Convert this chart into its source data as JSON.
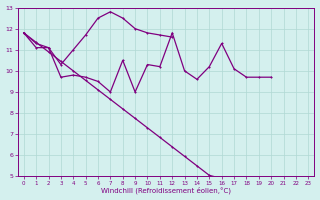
{
  "xlabel": "Windchill (Refroidissement éolien,°C)",
  "xlim": [
    -0.5,
    23.5
  ],
  "ylim": [
    5,
    13
  ],
  "xticks": [
    0,
    1,
    2,
    3,
    4,
    5,
    6,
    7,
    8,
    9,
    10,
    11,
    12,
    13,
    14,
    15,
    16,
    17,
    18,
    19,
    20,
    21,
    22,
    23
  ],
  "yticks": [
    5,
    6,
    7,
    8,
    9,
    10,
    11,
    12,
    13
  ],
  "line_color": "#800080",
  "bg_color": "#d4f0ee",
  "grid_color": "#b0d8d4",
  "line1_x": [
    0,
    1,
    2,
    3,
    4,
    5,
    6,
    7,
    8,
    9,
    10,
    11,
    12,
    13,
    14,
    15,
    16,
    17,
    18,
    19,
    20
  ],
  "line1_y": [
    11.8,
    11.1,
    11.1,
    9.7,
    9.8,
    9.7,
    9.5,
    9.0,
    10.5,
    9.0,
    10.3,
    10.2,
    11.8,
    10.0,
    9.6,
    10.2,
    11.3,
    10.1,
    9.7,
    9.7,
    9.7
  ],
  "line2_x": [
    0,
    1,
    2,
    3,
    4,
    5,
    6,
    7,
    8,
    9,
    10,
    11,
    12
  ],
  "line2_y": [
    11.8,
    11.3,
    11.1,
    10.3,
    11.0,
    11.7,
    12.5,
    12.8,
    12.5,
    12.0,
    11.8,
    11.7,
    11.6
  ],
  "line3_x": [
    0,
    1,
    2,
    3,
    4,
    5,
    6,
    7,
    8,
    9,
    10,
    11,
    12,
    13,
    14,
    15,
    16,
    17,
    18,
    19,
    20,
    21,
    22,
    23
  ],
  "line3_y": [
    11.8,
    11.35,
    10.9,
    10.45,
    10.0,
    9.55,
    9.1,
    8.65,
    8.2,
    7.75,
    7.3,
    6.85,
    6.4,
    5.95,
    5.5,
    5.05,
    4.9,
    4.85,
    4.82,
    4.8,
    4.78,
    4.9,
    4.9,
    4.85
  ]
}
